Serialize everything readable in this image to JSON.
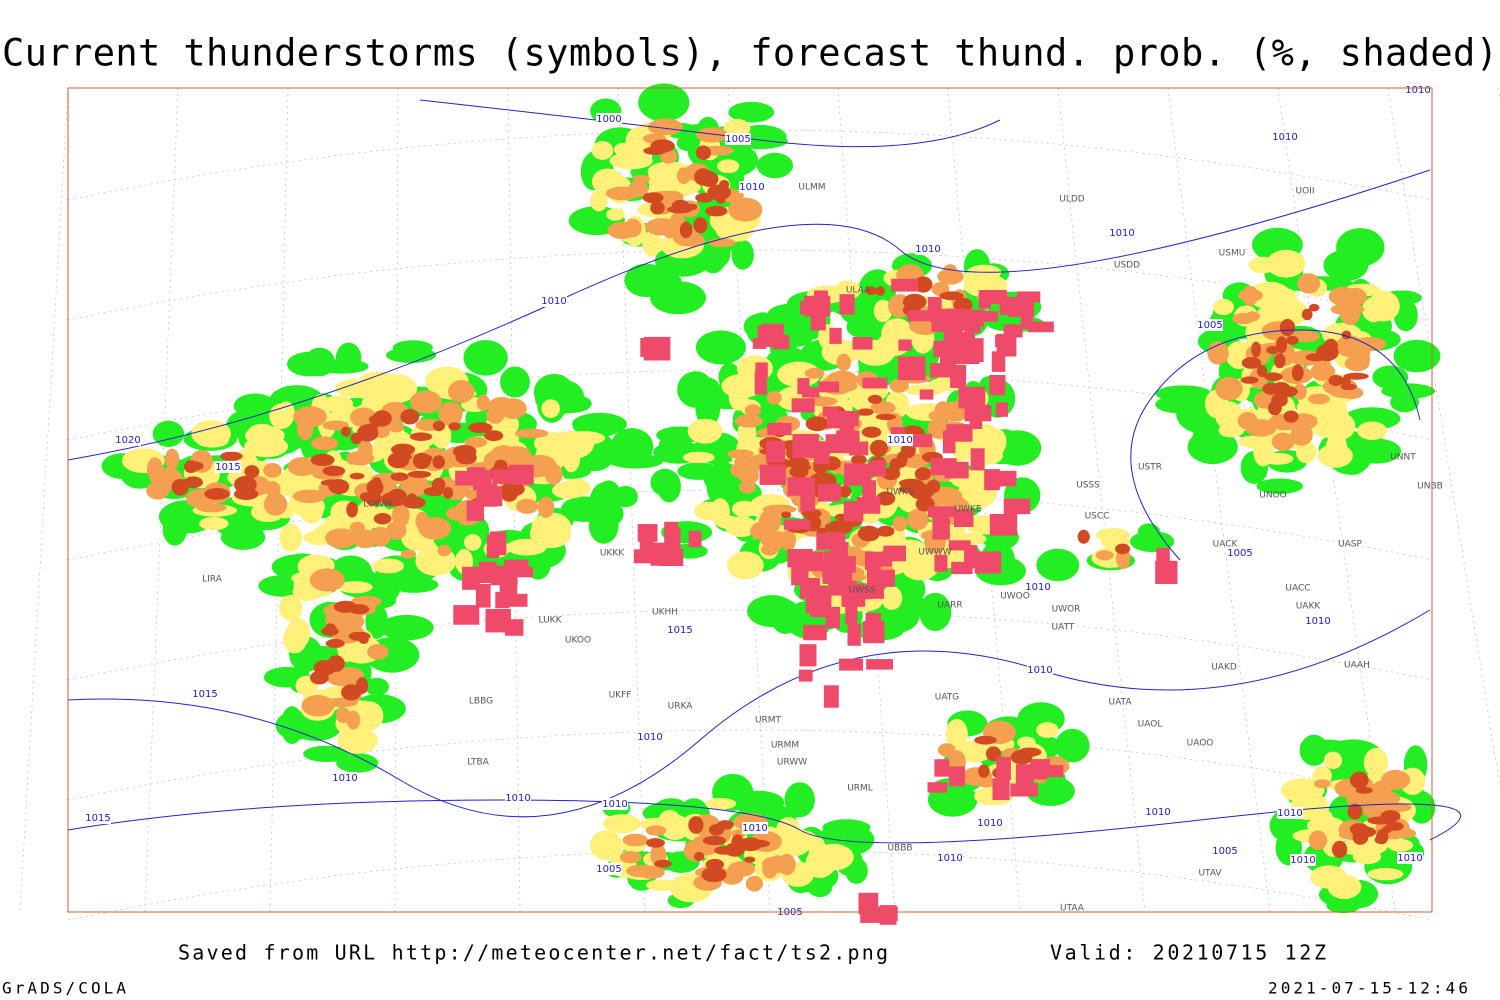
{
  "header": {
    "title": "Current thunderstorms (symbols), forecast thund. prob. (%, shaded)"
  },
  "map": {
    "isobar_labels": [
      1000,
      1005,
      1010,
      1010,
      1010,
      1010,
      1010,
      1005,
      1020,
      1015,
      1010,
      1005,
      1010,
      1015,
      1010,
      1010,
      1015,
      1010,
      1010,
      1010,
      1010,
      1010,
      1015,
      1010,
      1010,
      1010,
      1010,
      1005,
      1005,
      1005,
      1010,
      1010,
      1010
    ],
    "stations": [
      "ULMM",
      "ULDD",
      "UOII",
      "USMU",
      "ULAA",
      "USDD",
      "LIRA",
      "LOWW",
      "LUKK",
      "UKOO",
      "UKFF",
      "URKA",
      "URMT",
      "URMM",
      "URWW",
      "URML",
      "UBBB",
      "UATG",
      "UATA",
      "UAOL",
      "UAOO",
      "UAKD",
      "UARR",
      "UWOO",
      "UWOR",
      "UATT",
      "USSS",
      "USTR",
      "UACK",
      "UAKK",
      "UACC",
      "UASP",
      "UNOO",
      "UNNT",
      "UNBB",
      "UAAH",
      "UTAA",
      "UTAV",
      "LTBA",
      "LBBG",
      "UKHH",
      "UKKK",
      "UWKS",
      "UWWW",
      "UWSS",
      "UWKE",
      "USCC"
    ]
  },
  "footer": {
    "source": "Saved from URL http://meteocenter.net/fact/ts2.png",
    "valid": "Valid: 20210715 12Z",
    "credit": "GrADS/COLA",
    "timestamp": "2021-07-15-12:46"
  }
}
